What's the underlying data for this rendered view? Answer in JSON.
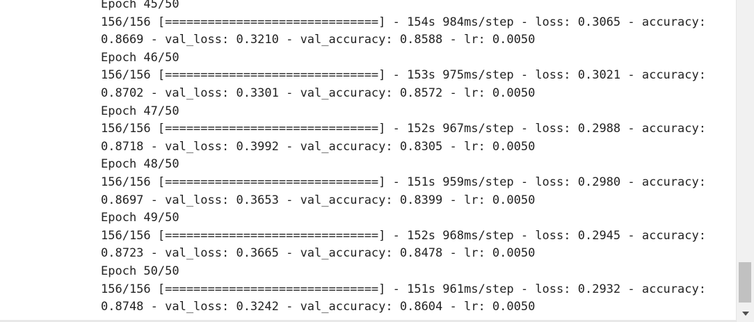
{
  "console": {
    "lines": [
      "Epoch 45/50",
      "156/156 [==============================] - 154s 984ms/step - loss: 0.3065 - accuracy:",
      "0.8669 - val_loss: 0.3210 - val_accuracy: 0.8588 - lr: 0.0050",
      "Epoch 46/50",
      "156/156 [==============================] - 153s 975ms/step - loss: 0.3021 - accuracy:",
      "0.8702 - val_loss: 0.3301 - val_accuracy: 0.8572 - lr: 0.0050",
      "Epoch 47/50",
      "156/156 [==============================] - 152s 967ms/step - loss: 0.2988 - accuracy:",
      "0.8718 - val_loss: 0.3992 - val_accuracy: 0.8305 - lr: 0.0050",
      "Epoch 48/50",
      "156/156 [==============================] - 151s 959ms/step - loss: 0.2980 - accuracy:",
      "0.8697 - val_loss: 0.3653 - val_accuracy: 0.8399 - lr: 0.0050",
      "Epoch 49/50",
      "156/156 [==============================] - 152s 968ms/step - loss: 0.2945 - accuracy:",
      "0.8723 - val_loss: 0.3665 - val_accuracy: 0.8478 - lr: 0.0050",
      "Epoch 50/50",
      "156/156 [==============================] - 151s 961ms/step - loss: 0.2932 - accuracy:",
      "0.8748 - val_loss: 0.3242 - val_accuracy: 0.8604 - lr: 0.0050"
    ]
  },
  "icons": {
    "scroll_down": "arrow-down-icon"
  },
  "colors": {
    "text": "#222222",
    "background": "#ffffff",
    "scroll_thumb": "#c1c1c1"
  }
}
